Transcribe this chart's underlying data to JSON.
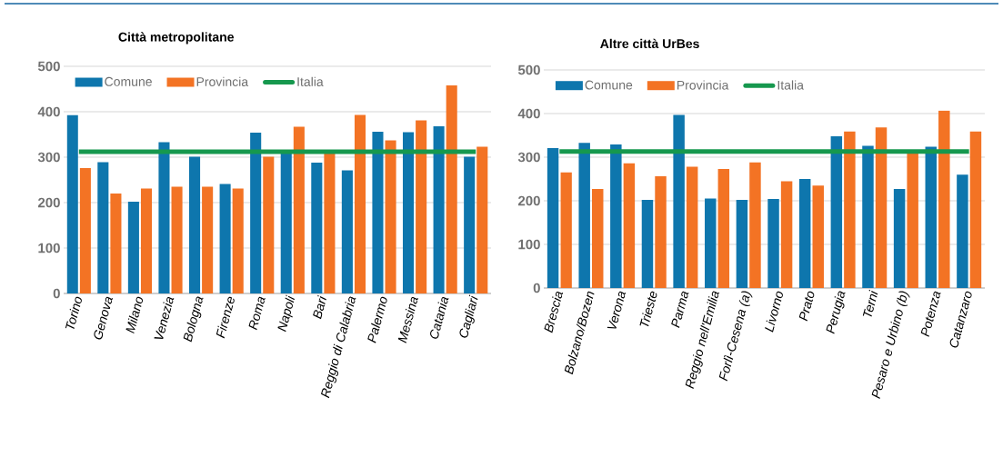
{
  "chart_data": [
    {
      "type": "bar",
      "title": "Città metropolitane",
      "categories": [
        "Torino",
        "Genova",
        "Milano",
        "Venezia",
        "Bologna",
        "Firenze",
        "Roma",
        "Napoli",
        "Bari",
        "Reggio di Calabria",
        "Palermo",
        "Messina",
        "Catania",
        "Cagliari"
      ],
      "series": [
        {
          "name": "Comune",
          "color": "#0e76ad",
          "values": [
            393,
            289,
            202,
            333,
            301,
            241,
            354,
            312,
            288,
            271,
            356,
            355,
            368,
            301
          ]
        },
        {
          "name": "Provincia",
          "color": "#f37324",
          "values": [
            276,
            220,
            231,
            235,
            235,
            231,
            301,
            367,
            310,
            393,
            337,
            381,
            458,
            323
          ]
        },
        {
          "name": "Italia",
          "type": "line",
          "color": "#16984e",
          "values": [
            312,
            312,
            312,
            312,
            312,
            312,
            312,
            312,
            312,
            312,
            312,
            312,
            312,
            312
          ]
        }
      ],
      "ylim": [
        0,
        500
      ],
      "yticks": [
        0,
        100,
        200,
        300,
        400,
        500
      ],
      "grid": "y",
      "legend": "top"
    },
    {
      "type": "bar",
      "title": "Altre città UrBes",
      "categories": [
        "Brescia",
        "Bolzano/Bozen",
        "Verona",
        "Trieste",
        "Parma",
        "Reggio nell'Emilia",
        "Forlì-Cesena (a)",
        "Livorno",
        "Prato",
        "Perugia",
        "Terni",
        "Pesaro e Urbino (b)",
        "Potenza",
        "Catanzaro"
      ],
      "series": [
        {
          "name": "Comune",
          "color": "#0e76ad",
          "values": [
            321,
            333,
            329,
            202,
            397,
            205,
            202,
            204,
            250,
            348,
            326,
            227,
            324,
            260
          ]
        },
        {
          "name": "Provincia",
          "color": "#f37324",
          "values": [
            265,
            227,
            286,
            256,
            278,
            273,
            288,
            245,
            235,
            359,
            368,
            310,
            407,
            359
          ]
        },
        {
          "name": "Italia",
          "type": "line",
          "color": "#16984e",
          "values": [
            313,
            313,
            313,
            313,
            313,
            313,
            313,
            313,
            313,
            313,
            313,
            313,
            313,
            313
          ]
        }
      ],
      "ylim": [
        0,
        500
      ],
      "yticks": [
        0,
        100,
        200,
        300,
        400,
        500
      ],
      "grid": "y",
      "legend": "top"
    }
  ]
}
